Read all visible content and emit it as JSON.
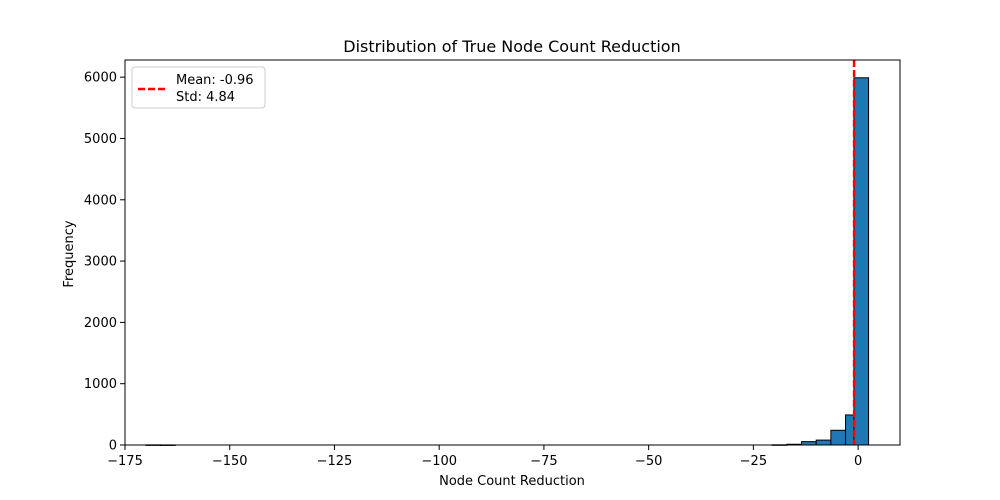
{
  "chart_data": {
    "type": "bar",
    "title": "Distribution of True Node Count Reduction",
    "xlabel": "Node Count Reduction",
    "ylabel": "Frequency",
    "xlim": [
      -175,
      10
    ],
    "ylim": [
      0,
      6280
    ],
    "xticks": [
      -175,
      -150,
      -125,
      -100,
      -75,
      -50,
      -25,
      0
    ],
    "xtick_labels": [
      "−175",
      "−150",
      "−125",
      "−100",
      "−75",
      "−50",
      "−25",
      "0"
    ],
    "yticks": [
      0,
      1000,
      2000,
      3000,
      4000,
      5000,
      6000
    ],
    "ytick_labels": [
      "0",
      "1000",
      "2000",
      "3000",
      "4000",
      "5000",
      "6000"
    ],
    "bin_width": 3.5,
    "bins": [
      {
        "x0": -170.0,
        "count": 2
      },
      {
        "x0": -166.5,
        "count": 1
      },
      {
        "x0": -20.5,
        "count": 3
      },
      {
        "x0": -17.0,
        "count": 12
      },
      {
        "x0": -13.5,
        "count": 55
      },
      {
        "x0": -10.0,
        "count": 80
      },
      {
        "x0": -6.5,
        "count": 240
      },
      {
        "x0": -3.0,
        "count": 490
      },
      {
        "x0": -1.0,
        "count": 5990
      }
    ],
    "bar_color": "#1f77b4",
    "bar_edge_color": "#000000",
    "mean_line": {
      "value": -0.96,
      "color": "#ff0000",
      "style": "dashed"
    },
    "legend": {
      "position": "top-left",
      "entries": [
        "Mean: -0.96",
        "Std: 4.84"
      ]
    }
  }
}
